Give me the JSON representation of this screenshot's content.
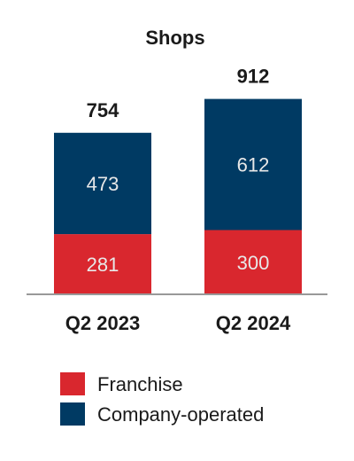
{
  "chart_data": {
    "type": "bar",
    "stacked": true,
    "title": "Shops",
    "categories": [
      "Q2 2023",
      "Q2 2024"
    ],
    "series": [
      {
        "name": "Franchise",
        "values": [
          281,
          300
        ],
        "color": "#d9272e"
      },
      {
        "name": "Company-operated",
        "values": [
          473,
          612
        ],
        "color": "#003a63"
      }
    ],
    "totals": [
      754,
      912
    ],
    "ylim": [
      0,
      960
    ],
    "grid": false,
    "legend_position": "bottom-left"
  },
  "colors": {
    "axis": "#999999"
  }
}
